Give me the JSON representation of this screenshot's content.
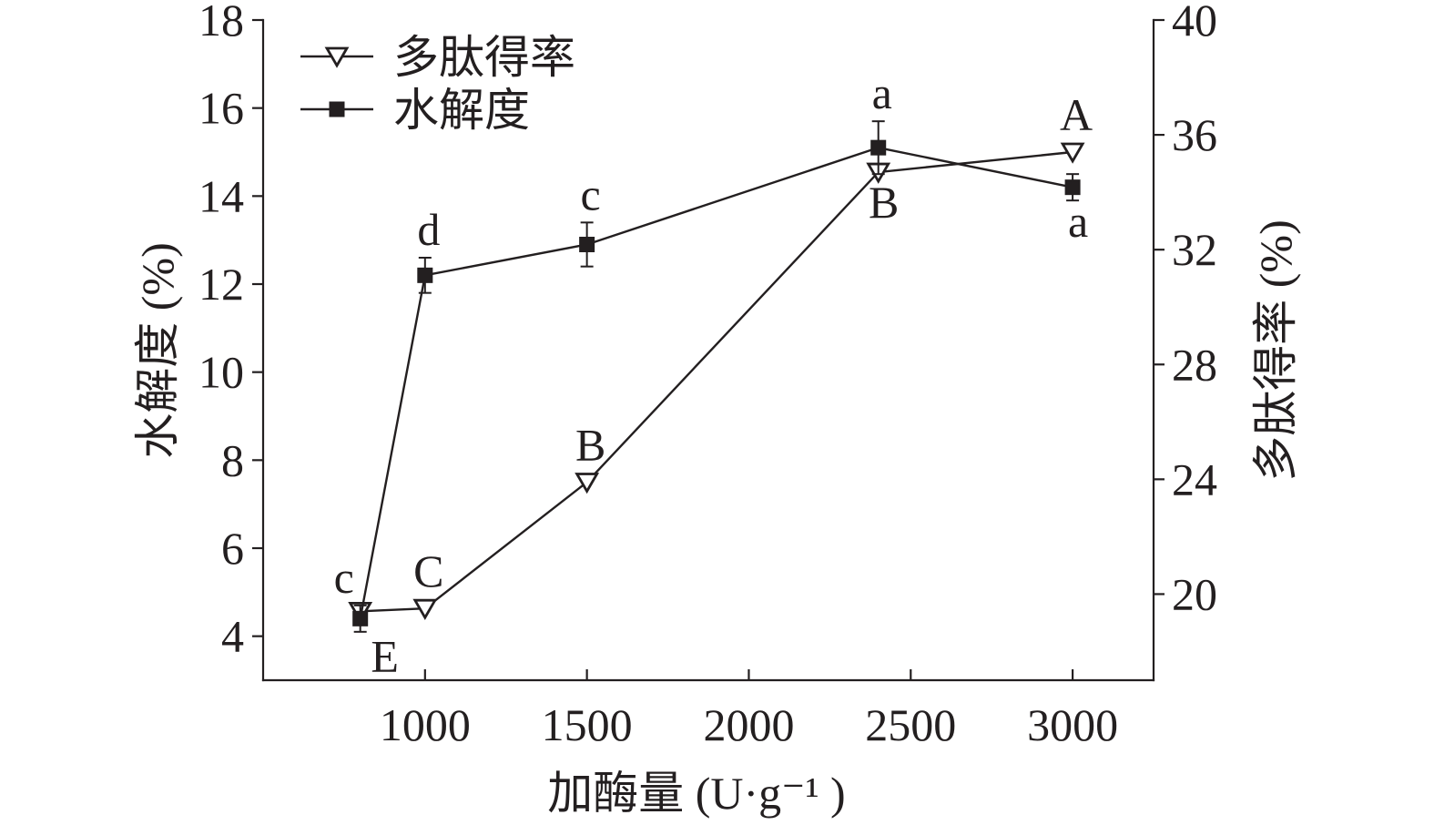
{
  "chart_data": {
    "type": "line",
    "xlabel": "加酶量 (U·g⁻¹ )",
    "x": [
      800,
      1000,
      1500,
      2400,
      3000
    ],
    "xlim": [
      500,
      3250
    ],
    "xticks": [
      1000,
      1500,
      2000,
      2500,
      3000
    ],
    "y_left": {
      "label": "水解度 (%)",
      "lim": [
        3,
        18
      ],
      "ticks": [
        4,
        6,
        8,
        10,
        12,
        14,
        16,
        18
      ]
    },
    "y_right": {
      "label": "多肽得率 (%)",
      "lim": [
        17,
        40
      ],
      "ticks": [
        20,
        24,
        28,
        32,
        36,
        40
      ]
    },
    "series": [
      {
        "name": "多肽得率",
        "axis": "right",
        "marker": "triangle-down-open",
        "values": [
          19.4,
          19.5,
          23.9,
          34.7,
          35.4
        ],
        "labels": [
          "E",
          "C",
          "B",
          "B",
          "A"
        ],
        "label_positions": [
          "below-right",
          "above",
          "above",
          "below",
          "above"
        ]
      },
      {
        "name": "水解度",
        "axis": "left",
        "marker": "square-filled",
        "values": [
          4.4,
          12.2,
          12.9,
          15.1,
          14.2
        ],
        "errors": [
          0.3,
          0.4,
          0.5,
          0.6,
          0.3
        ],
        "labels": [
          "c",
          "d",
          "c",
          "a",
          "a"
        ],
        "label_positions": [
          "above-left",
          "above",
          "above",
          "above",
          "below"
        ]
      }
    ],
    "legend": {
      "position": "top-left"
    },
    "grid": false,
    "colors": {
      "ink": "#231f20",
      "background": "#ffffff"
    }
  }
}
